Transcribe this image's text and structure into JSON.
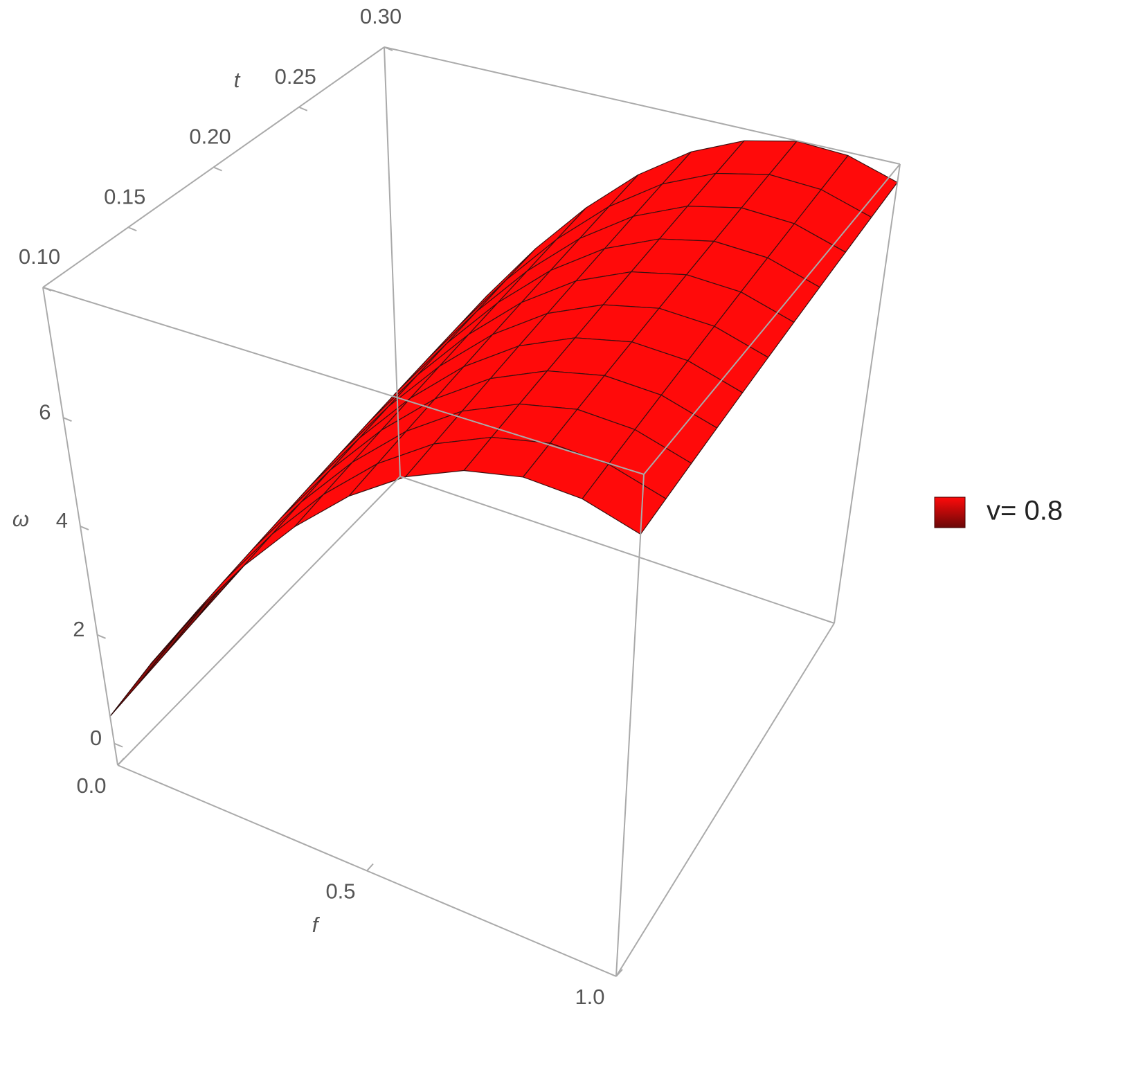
{
  "chart_data": {
    "type": "surface",
    "xlabel": "f",
    "ylabel": "t",
    "zlabel": "ω",
    "x": [
      0,
      0.1,
      0.2,
      0.3,
      0.4,
      0.5,
      0.6,
      0.7,
      0.8,
      0.9,
      1
    ],
    "y": [
      0.1,
      0.12,
      0.14,
      0.16,
      0.18,
      0.2,
      0.22,
      0.24,
      0.26,
      0.28,
      0.3
    ],
    "xlim": [
      0,
      1
    ],
    "ylim": [
      0.1,
      0.3
    ],
    "zlim": [
      -0.4,
      8.4
    ],
    "xticks": [
      {
        "value": 0,
        "label": "0.0"
      },
      0.5,
      {
        "value": 1,
        "label": "1.0"
      }
    ],
    "yticks": [
      {
        "value": 0.1,
        "label": "0.10"
      },
      0.15,
      {
        "value": 0.2,
        "label": "0.20"
      },
      0.25,
      {
        "value": 0.3,
        "label": "0.30"
      }
    ],
    "zticks": [
      0,
      2,
      4,
      6
    ],
    "legend": "right",
    "series": [
      {
        "name": "v= 0.8",
        "color": "#ff0a0a",
        "z": [
          [
            0.5,
            1.85,
            3.15,
            4.36,
            5.43,
            6.33,
            7.02,
            7.47,
            7.69,
            7.64,
            7.35
          ],
          [
            0.57,
            1.92,
            3.22,
            4.43,
            5.5,
            6.4,
            7.09,
            7.54,
            7.76,
            7.71,
            7.42
          ],
          [
            0.64,
            1.99,
            3.29,
            4.5,
            5.57,
            6.47,
            7.16,
            7.61,
            7.83,
            7.78,
            7.49
          ],
          [
            0.71,
            2.06,
            3.36,
            4.57,
            5.64,
            6.54,
            7.23,
            7.68,
            7.9,
            7.85,
            7.56
          ],
          [
            0.78,
            2.13,
            3.43,
            4.64,
            5.71,
            6.61,
            7.3,
            7.75,
            7.97,
            7.92,
            7.63
          ],
          [
            0.85,
            2.2,
            3.5,
            4.71,
            5.78,
            6.68,
            7.37,
            7.82,
            8.04,
            7.99,
            7.7
          ],
          [
            0.92,
            2.27,
            3.57,
            4.78,
            5.85,
            6.75,
            7.44,
            7.89,
            8.11,
            8.06,
            7.77
          ],
          [
            0.99,
            2.34,
            3.64,
            4.85,
            5.92,
            6.82,
            7.51,
            7.96,
            8.18,
            8.13,
            7.84
          ],
          [
            1.06,
            2.41,
            3.71,
            4.92,
            5.99,
            6.89,
            7.58,
            8.03,
            8.25,
            8.2,
            7.91
          ],
          [
            1.13,
            2.48,
            3.78,
            4.99,
            6.06,
            6.96,
            7.65,
            8.1,
            8.32,
            8.27,
            7.98
          ],
          [
            1.2,
            2.55,
            3.85,
            5.06,
            6.13,
            7.03,
            7.72,
            8.17,
            8.39,
            8.34,
            8.05
          ]
        ]
      }
    ]
  }
}
